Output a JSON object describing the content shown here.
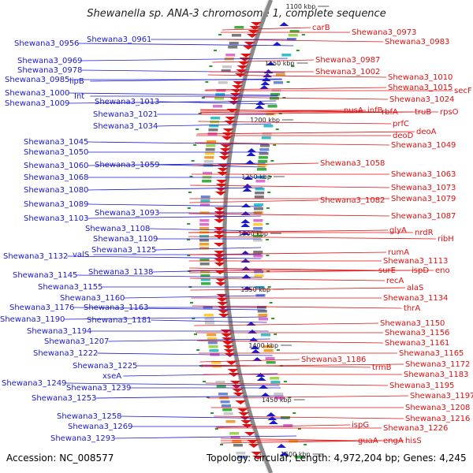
{
  "title": "Shewanella sp. ANA-3 chromosome 1, complete sequence",
  "accession": "Accession: NC_008577",
  "topology": "Topology: circular; Length: 4,972,204 bp; Genes: 4,245",
  "colors": {
    "forward": "#e01010",
    "reverse": "#1a1ad0",
    "backbone": "#8a8a8a"
  },
  "ticks": [
    "1100 kbp",
    "1150 kbp",
    "1200 kbp",
    "1250 kbp",
    "1300 kbp",
    "1350 kbp",
    "1400 kbp",
    "1450 kbp",
    "1500 kbp"
  ],
  "left_labels": [
    {
      "text": "Shewana3_0956"
    },
    {
      "text": "Shewana3_0961"
    },
    {
      "text": "Shewana3_0969"
    },
    {
      "text": "Shewana3_0978"
    },
    {
      "text": "Shewana3_0985"
    },
    {
      "text": "lipB"
    },
    {
      "text": "Shewana3_1000"
    },
    {
      "text": "Int"
    },
    {
      "text": "Shewana3_1009"
    },
    {
      "text": "Shewana3_1013"
    },
    {
      "text": "Shewana3_1021"
    },
    {
      "text": "Shewana3_1034"
    },
    {
      "text": "Shewana3_1045"
    },
    {
      "text": "Shewana3_1050"
    },
    {
      "text": "Shewana3_1060"
    },
    {
      "text": "Shewana3_1059"
    },
    {
      "text": "Shewana3_1068"
    },
    {
      "text": "Shewana3_1080"
    },
    {
      "text": "Shewana3_1089"
    },
    {
      "text": "Shewana3_1093"
    },
    {
      "text": "Shewana3_1103"
    },
    {
      "text": "Shewana3_1108"
    },
    {
      "text": "Shewana3_1109"
    },
    {
      "text": "Shewana3_1125"
    },
    {
      "text": "Shewana3_1132"
    },
    {
      "text": "valS"
    },
    {
      "text": "Shewana3_1138"
    },
    {
      "text": "Shewana3_1145"
    },
    {
      "text": "Shewana3_1155"
    },
    {
      "text": "Shewana3_1160"
    },
    {
      "text": "Shewana3_1176"
    },
    {
      "text": "Shewana3_1163"
    },
    {
      "text": "Shewana3_1190"
    },
    {
      "text": "Shewana3_1181"
    },
    {
      "text": "Shewana3_1194"
    },
    {
      "text": "Shewana3_1207"
    },
    {
      "text": "Shewana3_1222"
    },
    {
      "text": "Shewana3_1225"
    },
    {
      "text": "xseA"
    },
    {
      "text": "Shewana3_1249"
    },
    {
      "text": "Shewana3_1239"
    },
    {
      "text": "Shewana3_1253"
    },
    {
      "text": "Shewana3_1258"
    },
    {
      "text": "Shewana3_1269"
    },
    {
      "text": "Shewana3_1293"
    }
  ],
  "right_labels": [
    {
      "text": "carB"
    },
    {
      "text": "Shewana3_0973"
    },
    {
      "text": "Shewana3_0983"
    },
    {
      "text": "Shewana3_0987"
    },
    {
      "text": "Shewana3_1002"
    },
    {
      "text": "Shewana3_1010"
    },
    {
      "text": "Shewana3_1015"
    },
    {
      "text": "secF"
    },
    {
      "text": "Shewana3_1024"
    },
    {
      "text": "nusA"
    },
    {
      "text": "infB"
    },
    {
      "text": "rbfA"
    },
    {
      "text": "truB"
    },
    {
      "text": "rpsO"
    },
    {
      "text": "prfC"
    },
    {
      "text": "deoA"
    },
    {
      "text": "deoD"
    },
    {
      "text": "Shewana3_1049"
    },
    {
      "text": "Shewana3_1058"
    },
    {
      "text": "Shewana3_1063"
    },
    {
      "text": "Shewana3_1073"
    },
    {
      "text": "Shewana3_1082"
    },
    {
      "text": "Shewana3_1079"
    },
    {
      "text": "Shewana3_1087"
    },
    {
      "text": "glyA"
    },
    {
      "text": "nrdR"
    },
    {
      "text": "ribH"
    },
    {
      "text": "rumA"
    },
    {
      "text": "Shewana3_1113"
    },
    {
      "text": "surE"
    },
    {
      "text": "ispD"
    },
    {
      "text": "eno"
    },
    {
      "text": "recA"
    },
    {
      "text": "alaS"
    },
    {
      "text": "Shewana3_1134"
    },
    {
      "text": "thrA"
    },
    {
      "text": "Shewana3_1150"
    },
    {
      "text": "Shewana3_1156"
    },
    {
      "text": "Shewana3_1161"
    },
    {
      "text": "Shewana3_1186"
    },
    {
      "text": "Shewana3_1165"
    },
    {
      "text": "trmB"
    },
    {
      "text": "Shewana3_1172"
    },
    {
      "text": "Shewana3_1183"
    },
    {
      "text": "Shewana3_1195"
    },
    {
      "text": "Shewana3_1197"
    },
    {
      "text": "Shewana3_1208"
    },
    {
      "text": "Shewana3_1216"
    },
    {
      "text": "ispG"
    },
    {
      "text": "Shewana3_1226"
    },
    {
      "text": "guaA"
    },
    {
      "text": "engA"
    },
    {
      "text": "hisS"
    }
  ]
}
